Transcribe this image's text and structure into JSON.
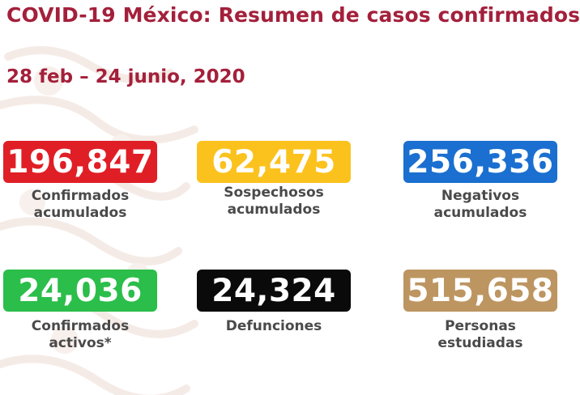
{
  "header": {
    "title": "COVID-19 México: Resumen de casos confirmados",
    "date_range": "28 feb – 24 junio, 2020"
  },
  "cards": [
    {
      "value": "196,847",
      "label_line1": "Confirmados",
      "label_line2": "acumulados",
      "color": "#e01e26"
    },
    {
      "value": "62,475",
      "label_line1": "Sospechosos",
      "label_line2": "acumulados",
      "color": "#fbc21e"
    },
    {
      "value": "256,336",
      "label_line1": "Negativos",
      "label_line2": "acumulados",
      "color": "#1a6fd0"
    },
    {
      "value": "24,036",
      "label_line1": "Confirmados",
      "label_line2": "activos*",
      "color": "#2bbe4a"
    },
    {
      "value": "24,324",
      "label_line1": "Defunciones",
      "label_line2": "",
      "color": "#0a0a0a"
    },
    {
      "value": "515,658",
      "label_line1": "Personas",
      "label_line2": "estudiadas",
      "color": "#bd9561"
    }
  ],
  "colors": {
    "title": "#a3203b",
    "label": "#4a4a4a",
    "pattern": "#f6ece7"
  }
}
